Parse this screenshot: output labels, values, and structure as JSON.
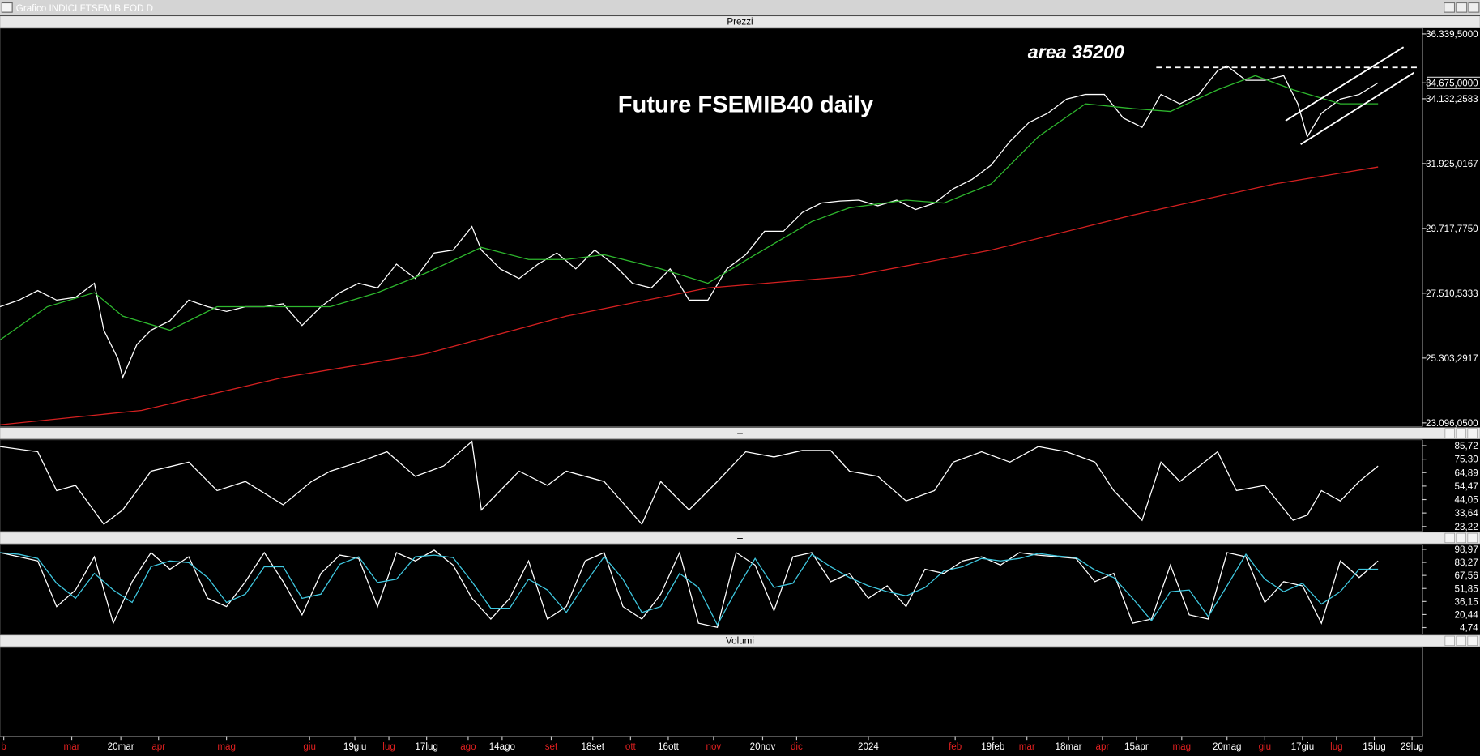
{
  "window": {
    "title": "Grafico INDICI FTSEMIB.EOD D"
  },
  "chart_data": [
    {
      "type": "line",
      "title": "Prezzi",
      "annotations": [
        "area 35200",
        "Future FSEMIB40 daily"
      ],
      "xlim": [
        0,
        376.75
      ],
      "ylim": [
        22967.5,
        36532.3
      ],
      "yticks": [
        {
          "value": 36339.5,
          "label": "36.339,5000"
        },
        {
          "value": 34675,
          "label": "34.675,0000"
        },
        {
          "value": 34132.2583,
          "label": "34.132,2583"
        },
        {
          "value": 31925.0167,
          "label": "31.925,0167"
        },
        {
          "value": 29717.775,
          "label": "29.717,7750"
        },
        {
          "value": 27510.5333,
          "label": "27.510,5333"
        },
        {
          "value": 25303.2917,
          "label": "25.303,2917"
        },
        {
          "value": 23096.05,
          "label": "23.096,0500"
        }
      ],
      "highlight_tick": 1,
      "series": [
        {
          "color": "#ffffff",
          "x": [
            0,
            5,
            10,
            15,
            20,
            25,
            27.5,
            31.25,
            32.5,
            36.25,
            40,
            45,
            50,
            55,
            60,
            65,
            70,
            75,
            80,
            85,
            90,
            95,
            100,
            105,
            110,
            115,
            120,
            125,
            127.5,
            132.5,
            137.5,
            142.5,
            147.5,
            152.5,
            157.5,
            162.5,
            167.5,
            172.5,
            177.5,
            182.5,
            187.5,
            192.5,
            197.5,
            202.5,
            207.5,
            212.5,
            217.5,
            222.5,
            227.5,
            232.5,
            237.5,
            242.5,
            247.5,
            252.5,
            257.5,
            262.5,
            267.5,
            272.5,
            277.5,
            282.5,
            287.5,
            292.5,
            297.5,
            302.5,
            307.5,
            312.5,
            317.5,
            322.5,
            325,
            330,
            335,
            340,
            343.75,
            346.25,
            350,
            355,
            360,
            365
          ],
          "values": [
            27050,
            27275,
            27600,
            27275,
            27370,
            27850,
            26250,
            25280,
            24640,
            25765,
            26250,
            26570,
            27275,
            27050,
            26890,
            27050,
            27050,
            27150,
            26410,
            27050,
            27530,
            27850,
            27690,
            28500,
            28010,
            28880,
            28980,
            29780,
            28980,
            28340,
            28010,
            28500,
            28880,
            28340,
            28980,
            28500,
            27850,
            27690,
            28340,
            27275,
            27275,
            28340,
            28820,
            29620,
            29620,
            30260,
            30580,
            30650,
            30680,
            30490,
            30680,
            30360,
            30580,
            31070,
            31390,
            31870,
            32680,
            33320,
            33640,
            34120,
            34280,
            34280,
            33480,
            33160,
            34280,
            33960,
            34280,
            35090,
            35250,
            34760,
            34760,
            34920,
            33960,
            32840,
            33640,
            34120,
            34280,
            34675
          ]
        },
        {
          "color": "#2eb82e",
          "x": [
            0,
            12.5,
            25,
            32.5,
            45,
            57.5,
            75,
            87.5,
            100,
            112.5,
            127.5,
            140,
            150,
            160,
            175,
            187.5,
            200,
            215,
            225,
            240,
            250,
            262.5,
            275,
            287.5,
            300,
            310,
            322.5,
            332.5,
            342.5,
            355,
            365
          ],
          "values": [
            25920,
            27050,
            27530,
            26730,
            26250,
            27050,
            27050,
            27050,
            27530,
            28180,
            29070,
            28660,
            28660,
            28820,
            28340,
            27850,
            28820,
            29950,
            30420,
            30680,
            30580,
            31230,
            32840,
            33960,
            33800,
            33700,
            34440,
            34920,
            34440,
            33960,
            33960
          ]
        },
        {
          "color": "#d42020",
          "x": [
            0,
            37.5,
            75,
            112.5,
            150,
            187.5,
            225,
            262.5,
            300,
            337.5,
            365
          ],
          "values": [
            23030,
            23520,
            24640,
            25440,
            26730,
            27690,
            28080,
            28980,
            30170,
            31230,
            31810
          ]
        }
      ],
      "hlines": [
        {
          "y": 35200,
          "x": [
            306.25,
            376.25
          ]
        }
      ],
      "trendlines": [
        {
          "x": [
            340.5,
            371.75
          ],
          "y": [
            33384,
            35890
          ]
        },
        {
          "x": [
            344.5,
            374.5
          ],
          "y": [
            32579,
            35022
          ]
        }
      ]
    },
    {
      "type": "line",
      "title": "--",
      "xlim": [
        0,
        376.75
      ],
      "ylim": [
        19.46,
        90.24
      ],
      "yticks": [
        {
          "value": 85.72,
          "label": "85,72"
        },
        {
          "value": 75.3,
          "label": "75,30"
        },
        {
          "value": 64.89,
          "label": "64,89"
        },
        {
          "value": 54.47,
          "label": "54,47"
        },
        {
          "value": 44.05,
          "label": "44,05"
        },
        {
          "value": 33.64,
          "label": "33,64"
        },
        {
          "value": 23.22,
          "label": "23,22"
        }
      ],
      "series": [
        {
          "color": "#ffffff",
          "x": [
            0,
            10,
            15,
            20,
            27.5,
            32.5,
            40,
            50,
            57.5,
            65,
            75,
            82.5,
            87.5,
            95,
            102.5,
            110,
            117.5,
            125,
            127.5,
            137.5,
            145,
            150,
            160,
            170,
            175,
            182.5,
            190,
            197.5,
            205,
            212.5,
            220,
            225,
            232.5,
            240,
            247.5,
            252.5,
            260,
            267.5,
            275,
            282.5,
            290,
            295,
            302.5,
            307.5,
            312.5,
            322.5,
            327.5,
            335,
            342.5,
            346.25,
            350,
            355,
            360,
            365
          ],
          "values": [
            85,
            81,
            51,
            55,
            25,
            36,
            66,
            73,
            51,
            58,
            40,
            58,
            66,
            73,
            81,
            62,
            70,
            89,
            36,
            66,
            55,
            66,
            58,
            25,
            58,
            36,
            58,
            81,
            77,
            82,
            82,
            66,
            62,
            43,
            51,
            73,
            81,
            73,
            85,
            81,
            73,
            51,
            28,
            73,
            58,
            81,
            51,
            55,
            28,
            32,
            51,
            43,
            58,
            70
          ]
        }
      ]
    },
    {
      "type": "line",
      "title": "--",
      "xlim": [
        0,
        376.75
      ],
      "ylim": [
        -3.3,
        104.7
      ],
      "yticks": [
        {
          "value": 98.97,
          "label": "98,97"
        },
        {
          "value": 83.27,
          "label": "83,27"
        },
        {
          "value": 67.56,
          "label": "67,56"
        },
        {
          "value": 51.85,
          "label": "51,85"
        },
        {
          "value": 36.15,
          "label": "36,15"
        },
        {
          "value": 20.44,
          "label": "20,44"
        },
        {
          "value": 4.74,
          "label": "4,74"
        }
      ],
      "series": [
        {
          "color": "#ffffff",
          "x": [
            0,
            5,
            10,
            15,
            20,
            25,
            30,
            35,
            40,
            45,
            50,
            55,
            60,
            65,
            70,
            75,
            80,
            85,
            90,
            95,
            100,
            105,
            110,
            115,
            120,
            125,
            130,
            135,
            140,
            145,
            150,
            155,
            160,
            165,
            170,
            175,
            180,
            185,
            190,
            195,
            200,
            205,
            210,
            215,
            220,
            225,
            230,
            235,
            240,
            245,
            250,
            255,
            260,
            265,
            270,
            275,
            280,
            285,
            290,
            295,
            300,
            305,
            310,
            315,
            320,
            325,
            330,
            335,
            340,
            345,
            350,
            355,
            360,
            365
          ],
          "values": [
            95,
            90,
            85,
            30,
            50,
            90,
            10,
            60,
            95,
            75,
            90,
            40,
            30,
            60,
            95,
            60,
            20,
            70,
            92,
            88,
            30,
            95,
            85,
            98,
            80,
            40,
            15,
            40,
            85,
            15,
            30,
            85,
            95,
            30,
            15,
            45,
            95,
            10,
            5,
            95,
            80,
            25,
            90,
            95,
            60,
            70,
            40,
            55,
            30,
            75,
            70,
            85,
            90,
            80,
            95,
            92,
            90,
            88,
            60,
            70,
            10,
            15,
            80,
            20,
            15,
            95,
            90,
            35,
            60,
            55,
            10,
            85,
            65,
            85
          ]
        },
        {
          "color": "#3fc8e0",
          "x": [
            0,
            5,
            10,
            15,
            20,
            25,
            30,
            35,
            40,
            45,
            50,
            55,
            60,
            65,
            70,
            75,
            80,
            85,
            90,
            95,
            100,
            105,
            110,
            115,
            120,
            125,
            130,
            135,
            140,
            145,
            150,
            155,
            160,
            165,
            170,
            175,
            180,
            185,
            190,
            195,
            200,
            205,
            210,
            215,
            220,
            225,
            230,
            235,
            240,
            245,
            250,
            255,
            260,
            265,
            270,
            275,
            280,
            285,
            290,
            295,
            300,
            305,
            310,
            315,
            320,
            325,
            330,
            335,
            340,
            345,
            350,
            355,
            360,
            365
          ],
          "values": [
            95,
            93,
            88,
            58,
            40,
            70,
            50,
            35,
            78,
            85,
            83,
            65,
            35,
            45,
            78,
            78,
            40,
            45,
            81,
            90,
            59,
            63,
            90,
            92,
            89,
            60,
            28,
            28,
            63,
            50,
            23,
            58,
            90,
            63,
            23,
            30,
            70,
            53,
            8,
            50,
            88,
            53,
            58,
            93,
            78,
            65,
            55,
            48,
            43,
            53,
            73,
            78,
            88,
            85,
            88,
            94,
            91,
            89,
            74,
            65,
            40,
            13,
            48,
            50,
            18,
            55,
            93,
            63,
            48,
            58,
            33,
            48,
            75,
            75
          ]
        }
      ]
    },
    {
      "type": "bar",
      "title": "Volumi",
      "xlim": [
        0,
        376.75
      ],
      "xticks": [
        {
          "value": 1,
          "label": "b"
        },
        {
          "value": 19,
          "label": "mar"
        },
        {
          "value": 32,
          "label": "20mar"
        },
        {
          "value": 42,
          "label": "apr"
        },
        {
          "value": 60,
          "label": "mag"
        },
        {
          "value": 82,
          "label": "giu"
        },
        {
          "value": 94,
          "label": "19giu"
        },
        {
          "value": 103,
          "label": "lug"
        },
        {
          "value": 113,
          "label": "17lug"
        },
        {
          "value": 124,
          "label": "ago"
        },
        {
          "value": 133,
          "label": "14ago"
        },
        {
          "value": 146,
          "label": "set"
        },
        {
          "value": 157,
          "label": "18set"
        },
        {
          "value": 167,
          "label": "ott"
        },
        {
          "value": 177,
          "label": "16ott"
        },
        {
          "value": 189,
          "label": "nov"
        },
        {
          "value": 202,
          "label": "20nov"
        },
        {
          "value": 211,
          "label": "dic"
        },
        {
          "value": 230,
          "label": "2024"
        },
        {
          "value": 253,
          "label": "feb"
        },
        {
          "value": 263,
          "label": "19feb"
        },
        {
          "value": 272,
          "label": "mar"
        },
        {
          "value": 283,
          "label": "18mar"
        },
        {
          "value": 292,
          "label": "apr"
        },
        {
          "value": 301,
          "label": "15apr"
        },
        {
          "value": 313,
          "label": "mag"
        },
        {
          "value": 325,
          "label": "20mag"
        },
        {
          "value": 335,
          "label": "giu"
        },
        {
          "value": 345,
          "label": "17giu"
        },
        {
          "value": 354,
          "label": "lug"
        },
        {
          "value": 364,
          "label": "15lug"
        },
        {
          "value": 374,
          "label": "29lug"
        }
      ]
    }
  ]
}
